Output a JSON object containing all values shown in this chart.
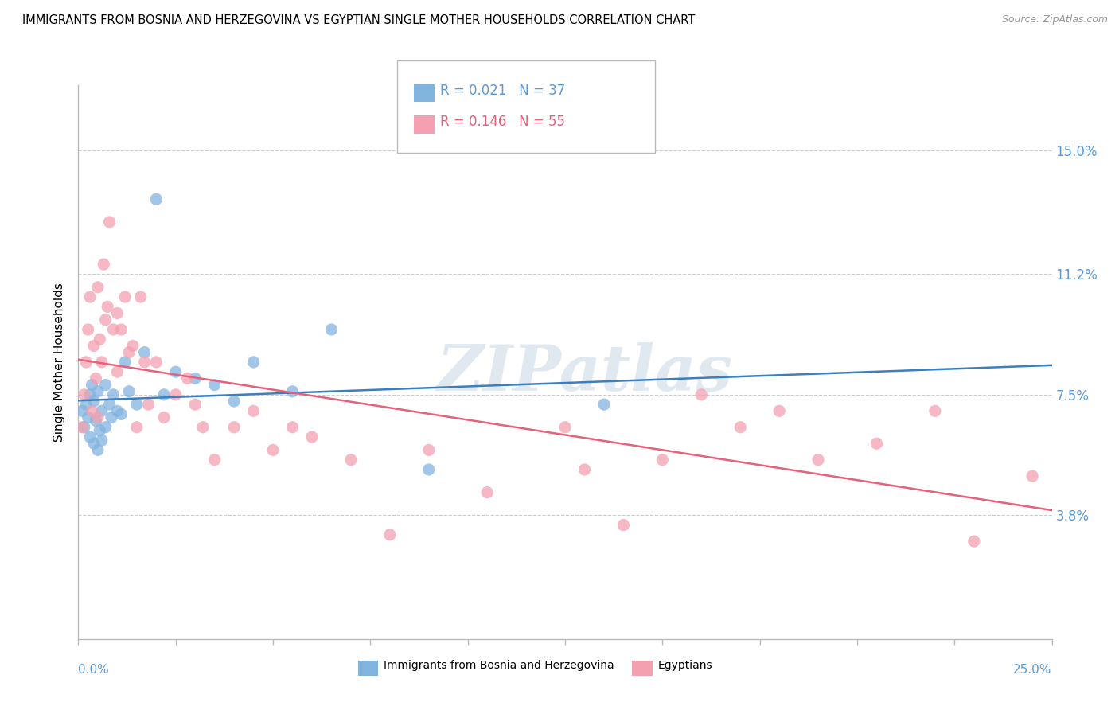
{
  "title": "IMMIGRANTS FROM BOSNIA AND HERZEGOVINA VS EGYPTIAN SINGLE MOTHER HOUSEHOLDS CORRELATION CHART",
  "source": "Source: ZipAtlas.com",
  "ylabel": "Single Mother Households",
  "xlim": [
    0.0,
    25.0
  ],
  "ylim": [
    0.0,
    17.0
  ],
  "yticks": [
    3.8,
    7.5,
    11.2,
    15.0
  ],
  "ytick_labels": [
    "3.8%",
    "7.5%",
    "11.2%",
    "15.0%"
  ],
  "blue_R": "0.021",
  "blue_N": "37",
  "pink_R": "0.146",
  "pink_N": "55",
  "blue_color": "#82b4e0",
  "pink_color": "#f4a0b0",
  "blue_line_color": "#3a7fc1",
  "pink_line_color": "#e8607a",
  "legend_label_blue": "Immigrants from Bosnia and Herzegovina",
  "legend_label_pink": "Egyptians",
  "watermark": "ZIPatlas",
  "blue_scatter_x": [
    0.1,
    0.15,
    0.2,
    0.25,
    0.3,
    0.3,
    0.35,
    0.4,
    0.4,
    0.45,
    0.5,
    0.5,
    0.55,
    0.6,
    0.6,
    0.7,
    0.7,
    0.8,
    0.85,
    0.9,
    1.0,
    1.1,
    1.2,
    1.3,
    1.5,
    1.7,
    2.0,
    2.2,
    2.5,
    3.0,
    3.5,
    4.0,
    4.5,
    5.5,
    6.5,
    9.0,
    13.5
  ],
  "blue_scatter_y": [
    7.0,
    6.5,
    7.2,
    6.8,
    7.5,
    6.2,
    7.8,
    6.0,
    7.3,
    6.7,
    5.8,
    7.6,
    6.4,
    7.0,
    6.1,
    7.8,
    6.5,
    7.2,
    6.8,
    7.5,
    7.0,
    6.9,
    8.5,
    7.6,
    7.2,
    8.8,
    13.5,
    7.5,
    8.2,
    8.0,
    7.8,
    7.3,
    8.5,
    7.6,
    9.5,
    5.2,
    7.2
  ],
  "pink_scatter_x": [
    0.1,
    0.15,
    0.2,
    0.25,
    0.3,
    0.35,
    0.4,
    0.45,
    0.5,
    0.5,
    0.55,
    0.6,
    0.65,
    0.7,
    0.75,
    0.8,
    0.9,
    1.0,
    1.0,
    1.1,
    1.2,
    1.3,
    1.4,
    1.5,
    1.6,
    1.7,
    1.8,
    2.0,
    2.2,
    2.5,
    2.8,
    3.0,
    3.2,
    3.5,
    4.0,
    4.5,
    5.0,
    5.5,
    6.0,
    7.0,
    8.0,
    9.0,
    10.5,
    12.5,
    13.0,
    14.0,
    15.0,
    16.0,
    17.0,
    18.0,
    19.0,
    20.5,
    22.0,
    23.0,
    24.5
  ],
  "pink_scatter_y": [
    6.5,
    7.5,
    8.5,
    9.5,
    10.5,
    7.0,
    9.0,
    8.0,
    10.8,
    6.8,
    9.2,
    8.5,
    11.5,
    9.8,
    10.2,
    12.8,
    9.5,
    10.0,
    8.2,
    9.5,
    10.5,
    8.8,
    9.0,
    6.5,
    10.5,
    8.5,
    7.2,
    8.5,
    6.8,
    7.5,
    8.0,
    7.2,
    6.5,
    5.5,
    6.5,
    7.0,
    5.8,
    6.5,
    6.2,
    5.5,
    3.2,
    5.8,
    4.5,
    6.5,
    5.2,
    3.5,
    5.5,
    7.5,
    6.5,
    7.0,
    5.5,
    6.0,
    7.0,
    3.0,
    5.0
  ]
}
